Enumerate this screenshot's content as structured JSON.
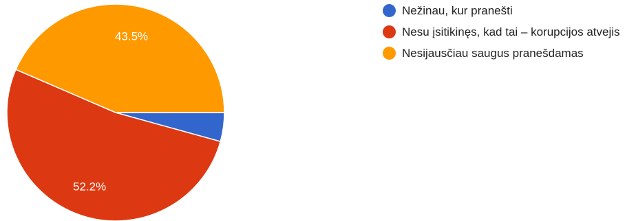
{
  "chart_data": {
    "type": "pie",
    "categories": [
      "Nežinau, kur pranešti",
      "Nesu įsitikinęs, kad tai – korupcijos atvejis",
      "Nesijausčiau saugus pranešdamas"
    ],
    "values": [
      4.3,
      52.2,
      43.5
    ],
    "value_labels": [
      "",
      "52.2%",
      "43.5%"
    ],
    "colors": [
      "#3366cc",
      "#dc3912",
      "#ff9900"
    ],
    "start_angle_deg": 0,
    "direction": "clockwise",
    "legend_position": "right"
  }
}
